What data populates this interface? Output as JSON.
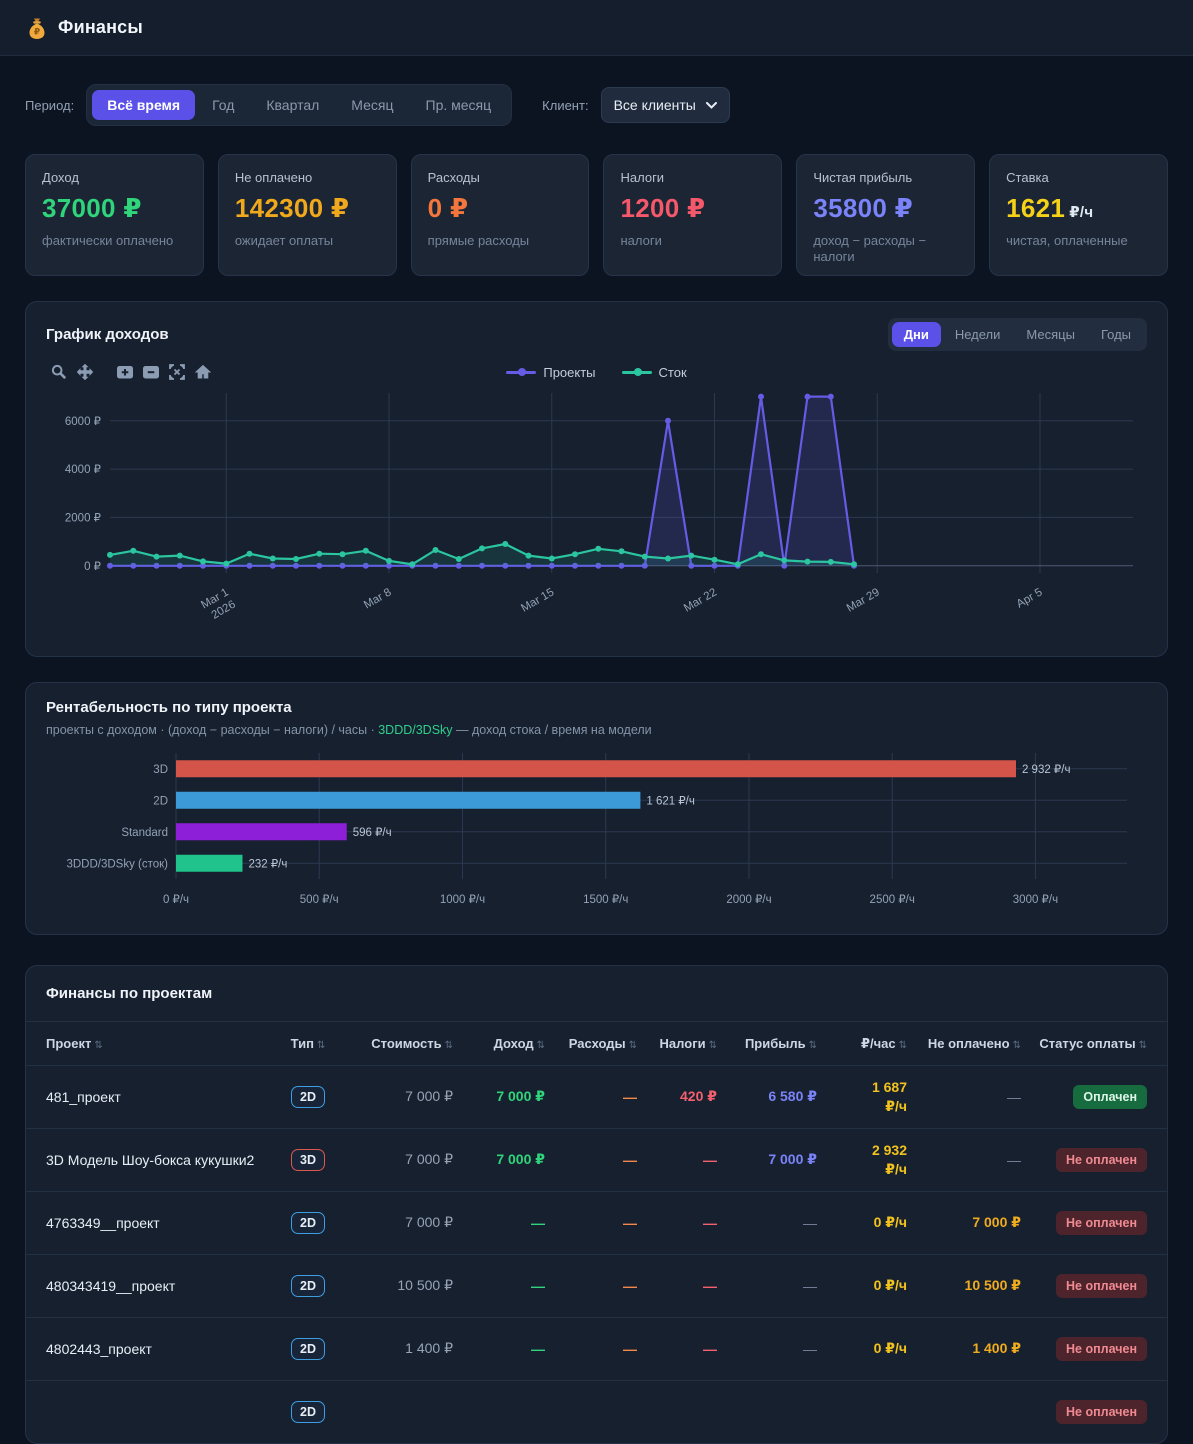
{
  "app": {
    "title": "Финансы",
    "logo_icon": "money-bag-icon"
  },
  "colors": {
    "accent": "#5b50e8",
    "green": "#2fd47b",
    "amber": "#f0ab1e",
    "orange": "#f4763d",
    "red": "#f4586a",
    "indigo": "#7b83f8",
    "yellow": "#f2c91d",
    "teal": "#2bc5a0",
    "projects_line": "#655be5",
    "stock_line": "#2bc5a0"
  },
  "filters": {
    "period": {
      "label": "Период:",
      "options": [
        "Всё время",
        "Год",
        "Квартал",
        "Месяц",
        "Пр. месяц"
      ],
      "active_index": 0
    },
    "client": {
      "label": "Клиент:",
      "value": "Все клиенты"
    }
  },
  "stats": {
    "cards": [
      {
        "label": "Доход",
        "value": "37000 ₽",
        "unit": "",
        "color": "#2fd47b",
        "note": "фактически оплачено"
      },
      {
        "label": "Не оплачено",
        "value": "142300 ₽",
        "unit": "",
        "color": "#f0a81c",
        "note": "ожидает оплаты"
      },
      {
        "label": "Расходы",
        "value": "0 ₽",
        "unit": "",
        "color": "#f4763d",
        "note": "прямые расходы"
      },
      {
        "label": "Налоги",
        "value": "1200 ₽",
        "unit": "",
        "color": "#f4586a",
        "note": "налоги"
      },
      {
        "label": "Чистая прибыль",
        "value": "35800 ₽",
        "unit": "",
        "color": "#7b83f8",
        "note": "доход − расходы − налоги"
      },
      {
        "label": "Ставка",
        "value": "1621",
        "unit": "₽/ч",
        "color": "#f5d118",
        "note": "чистая, оплаченные"
      }
    ]
  },
  "income_chart": {
    "title": "График доходов",
    "range_tabs": {
      "options": [
        "Дни",
        "Недели",
        "Месяцы",
        "Годы"
      ],
      "active_index": 0
    },
    "toolbar_icons": [
      "zoom",
      "pan",
      "zoom-in",
      "zoom-out",
      "autoscale",
      "reset-axes"
    ]
  },
  "chart_data": [
    {
      "type": "line",
      "title": "График доходов",
      "legend_position": "top-center",
      "grid": true,
      "x_domain": [
        0,
        44
      ],
      "y_domain": [
        -300,
        7150
      ],
      "y_ticks": [
        {
          "v": 0,
          "label": "0 ₽"
        },
        {
          "v": 2000,
          "label": "2000 ₽"
        },
        {
          "v": 4000,
          "label": "4000 ₽"
        },
        {
          "v": 6000,
          "label": "6000 ₽"
        }
      ],
      "x_ticks": [
        {
          "idx": 5,
          "label": "Mar 1",
          "sub": "2026"
        },
        {
          "idx": 12,
          "label": "Mar 8"
        },
        {
          "idx": 19,
          "label": "Mar 15"
        },
        {
          "idx": 26,
          "label": "Mar 22"
        },
        {
          "idx": 33,
          "label": "Mar 29"
        },
        {
          "idx": 40,
          "label": "Apr 5"
        }
      ],
      "x_note": "daily points, Feb 24 2026 – Mar 28 2026",
      "series": [
        {
          "name": "Проекты",
          "color": "#655be5",
          "fill_opacity": 0.16,
          "values": [
            0,
            0,
            0,
            0,
            0,
            0,
            0,
            0,
            0,
            0,
            0,
            0,
            0,
            0,
            0,
            0,
            0,
            0,
            0,
            0,
            0,
            0,
            0,
            0,
            6000,
            0,
            0,
            0,
            7000,
            0,
            7000,
            7000,
            0
          ]
        },
        {
          "name": "Сток",
          "color": "#2bc5a0",
          "fill_opacity": 0.12,
          "values": [
            450,
            620,
            380,
            420,
            180,
            90,
            500,
            300,
            280,
            500,
            480,
            620,
            200,
            60,
            650,
            280,
            720,
            900,
            420,
            300,
            480,
            700,
            600,
            380,
            300,
            420,
            250,
            60,
            480,
            220,
            170,
            160,
            60
          ]
        }
      ]
    },
    {
      "type": "bar",
      "orientation": "horizontal",
      "title": "Рентабельность по типу проекта",
      "subtitle_pre": "проекты с доходом · (доход − расходы − налоги) / часы · ",
      "subtitle_link": "3DDD/3DSky",
      "subtitle_post": " — доход стока / время на модели",
      "categories": [
        "3D",
        "2D",
        "Standard",
        "3DDD/3DSky (сток)"
      ],
      "values": [
        2932,
        1621,
        596,
        232
      ],
      "value_labels": [
        "2 932 ₽/ч",
        "1 621 ₽/ч",
        "596 ₽/ч",
        "232 ₽/ч"
      ],
      "bar_colors": [
        "#d4544a",
        "#3d9ad8",
        "#8d1fd9",
        "#1fc38b"
      ],
      "xlim": [
        0,
        3180
      ],
      "xticks": [
        0,
        500,
        1000,
        1500,
        2000,
        2500,
        3000
      ],
      "xtick_labels": [
        "0 ₽/ч",
        "500 ₽/ч",
        "1000 ₽/ч",
        "1500 ₽/ч",
        "2000 ₽/ч",
        "2500 ₽/ч",
        "3000 ₽/ч"
      ],
      "grid": true
    }
  ],
  "table": {
    "title": "Финансы по проектам",
    "columns": [
      {
        "label": "Проект",
        "align": "left"
      },
      {
        "label": "Тип",
        "align": "center"
      },
      {
        "label": "Стоимость",
        "align": "right"
      },
      {
        "label": "Доход",
        "align": "right"
      },
      {
        "label": "Расходы",
        "align": "right"
      },
      {
        "label": "Налоги",
        "align": "right"
      },
      {
        "label": "Прибыль",
        "align": "right"
      },
      {
        "label": "₽/час",
        "align": "right"
      },
      {
        "label": "Не оплачено",
        "align": "right"
      },
      {
        "label": "Статус оплаты",
        "align": "right"
      }
    ],
    "sort_icon": "⇅",
    "rows": [
      {
        "name": "481_проект",
        "type": "2D",
        "cost": "7 000 ₽",
        "income": "7 000 ₽",
        "expenses": "—",
        "taxes": "420 ₽",
        "profit": "6 580 ₽",
        "rate": "1 687\n₽/ч",
        "unpaid": "—",
        "status": "Оплачен",
        "status_kind": "paid"
      },
      {
        "name": "3D Модель Шоу-бокса кукушки2",
        "type": "3D",
        "cost": "7 000 ₽",
        "income": "7 000 ₽",
        "expenses": "—",
        "taxes": "—",
        "profit": "7 000 ₽",
        "rate": "2 932\n₽/ч",
        "unpaid": "—",
        "status": "Не оплачен",
        "status_kind": "unpaid"
      },
      {
        "name": "4763349__проект",
        "type": "2D",
        "cost": "7 000 ₽",
        "income": "—",
        "expenses": "—",
        "taxes": "—",
        "profit": "—",
        "rate": "0 ₽/ч",
        "unpaid": "7 000 ₽",
        "status": "Не оплачен",
        "status_kind": "unpaid"
      },
      {
        "name": "480343419__проект",
        "type": "2D",
        "cost": "10 500 ₽",
        "income": "—",
        "expenses": "—",
        "taxes": "—",
        "profit": "—",
        "rate": "0 ₽/ч",
        "unpaid": "10 500 ₽",
        "status": "Не оплачен",
        "status_kind": "unpaid"
      },
      {
        "name": "4802443_проект",
        "type": "2D",
        "cost": "1 400 ₽",
        "income": "—",
        "expenses": "—",
        "taxes": "—",
        "profit": "—",
        "rate": "0 ₽/ч",
        "unpaid": "1 400 ₽",
        "status": "Не оплачен",
        "status_kind": "unpaid"
      },
      {
        "name": "",
        "type": "2D",
        "cost": "",
        "income": "",
        "expenses": "",
        "taxes": "",
        "profit": "",
        "rate": "",
        "unpaid": "",
        "status": "Не оплачен",
        "status_kind": "unpaid",
        "partial": true
      }
    ]
  }
}
